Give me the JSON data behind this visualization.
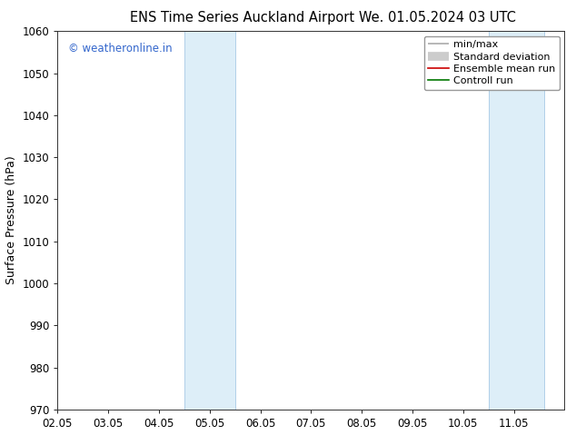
{
  "title_left": "ENS Time Series Auckland Airport",
  "title_right": "We. 01.05.2024 03 UTC",
  "ylabel": "Surface Pressure (hPa)",
  "ylim": [
    970,
    1060
  ],
  "yticks": [
    970,
    980,
    990,
    1000,
    1010,
    1020,
    1030,
    1040,
    1050,
    1060
  ],
  "xlim_min": 0.0,
  "xlim_max": 10.0,
  "xtick_labels": [
    "02.05",
    "03.05",
    "04.05",
    "05.05",
    "06.05",
    "07.05",
    "08.05",
    "09.05",
    "10.05",
    "11.05"
  ],
  "xtick_positions": [
    0,
    1,
    2,
    3,
    4,
    5,
    6,
    7,
    8,
    9
  ],
  "blue_bands": [
    {
      "xmin": 2.5,
      "xmax": 3.5
    },
    {
      "xmin": 8.5,
      "xmax": 9.6
    }
  ],
  "band_color": "#ddeef8",
  "band_edge_color": "#b0cfe8",
  "watermark": "© weatheronline.in",
  "watermark_color": "#3366cc",
  "legend_labels": [
    "min/max",
    "Standard deviation",
    "Ensemble mean run",
    "Controll run"
  ],
  "legend_colors": [
    "#999999",
    "#cccccc",
    "#cc0000",
    "#007700"
  ],
  "bg_color": "#ffffff",
  "plot_bg_color": "#ffffff",
  "title_fontsize": 10.5,
  "axis_label_fontsize": 9,
  "tick_fontsize": 8.5,
  "legend_fontsize": 8
}
